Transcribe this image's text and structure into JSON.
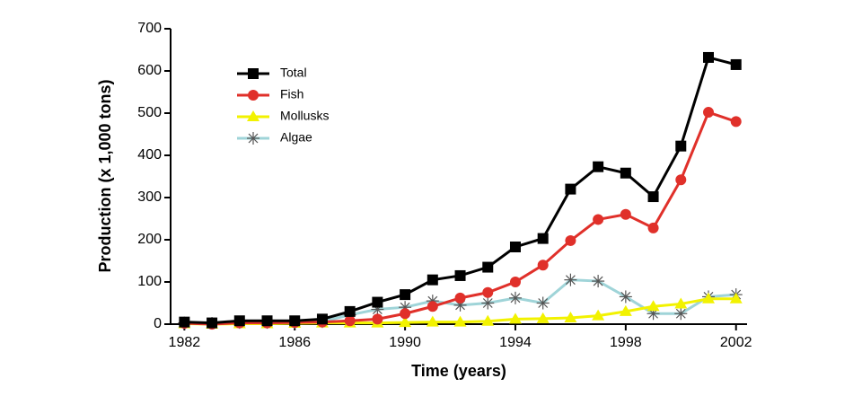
{
  "chart_data": {
    "type": "line",
    "x_label": "Time (years)",
    "y_label": "Production (x 1,000 tons)",
    "x": [
      1982,
      1983,
      1984,
      1985,
      1986,
      1987,
      1988,
      1989,
      1990,
      1991,
      1992,
      1993,
      1994,
      1995,
      1996,
      1997,
      1998,
      1999,
      2000,
      2001,
      2002
    ],
    "series": [
      {
        "name": "Total",
        "color": "#000000",
        "marker": "square",
        "values": [
          5,
          3,
          8,
          8,
          8,
          12,
          30,
          52,
          70,
          105,
          115,
          135,
          183,
          203,
          320,
          373,
          358,
          302,
          422,
          632,
          615
        ]
      },
      {
        "name": "Fish",
        "color": "#e0302a",
        "marker": "circle",
        "values": [
          2,
          0,
          3,
          3,
          4,
          5,
          8,
          12,
          25,
          42,
          62,
          75,
          100,
          140,
          198,
          248,
          260,
          228,
          342,
          502,
          480
        ]
      },
      {
        "name": "Mollusks",
        "color": "#f2f200",
        "marker": "triangle",
        "values": [
          1,
          0,
          1,
          1,
          2,
          3,
          3,
          3,
          4,
          5,
          5,
          7,
          12,
          13,
          15,
          20,
          30,
          42,
          48,
          60,
          60
        ]
      },
      {
        "name": "Algae",
        "color": "#9fd4d8",
        "marker": "asterisk",
        "values": [
          3,
          2,
          4,
          4,
          4,
          6,
          22,
          35,
          40,
          55,
          45,
          50,
          62,
          50,
          105,
          102,
          65,
          25,
          25,
          65,
          70
        ]
      }
    ],
    "xlim": [
      1981.5,
      2002.4
    ],
    "xticks": [
      1982,
      1986,
      1990,
      1994,
      1998,
      2002
    ],
    "ylim": [
      0,
      700
    ],
    "yticks": [
      0,
      100,
      200,
      300,
      400,
      500,
      600,
      700
    ],
    "legend": "upper left"
  }
}
